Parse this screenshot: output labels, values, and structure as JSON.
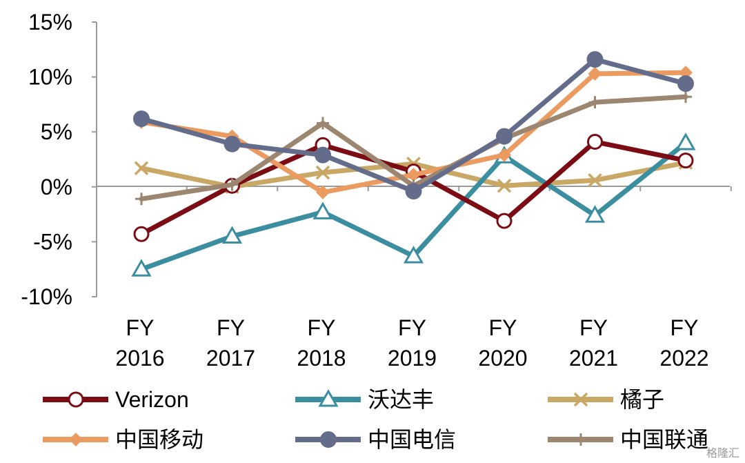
{
  "chart_data": {
    "type": "line",
    "title": "",
    "xlabel": "",
    "ylabel": "",
    "categories": [
      [
        "FY",
        "2016"
      ],
      [
        "FY",
        "2017"
      ],
      [
        "FY",
        "2018"
      ],
      [
        "FY",
        "2019"
      ],
      [
        "FY",
        "2020"
      ],
      [
        "FY",
        "2021"
      ],
      [
        "FY",
        "2022"
      ]
    ],
    "ylim": [
      -10,
      15
    ],
    "yticks": [
      -10,
      -5,
      0,
      5,
      10,
      15
    ],
    "ytick_labels": [
      "-10%",
      "-5%",
      "0%",
      "5%",
      "10%",
      "15%"
    ],
    "grid": false,
    "legend_position": "bottom",
    "series": [
      {
        "name": "Verizon",
        "color": "#7b0c14",
        "marker": "circle-open",
        "values": [
          -4.3,
          0.1,
          3.8,
          1.4,
          -3.1,
          4.1,
          2.4
        ]
      },
      {
        "name": "沃达丰",
        "color": "#3a8ea0",
        "marker": "triangle-open",
        "values": [
          -7.5,
          -4.5,
          -2.3,
          -6.3,
          2.8,
          -2.6,
          4.0
        ]
      },
      {
        "name": "橘子",
        "color": "#c9a765",
        "marker": "cross",
        "values": [
          1.7,
          0.0,
          1.3,
          2.1,
          0.1,
          0.6,
          2.2
        ]
      },
      {
        "name": "中国移动",
        "color": "#eb9a60",
        "marker": "diamond",
        "values": [
          5.9,
          4.6,
          -0.5,
          1.1,
          2.9,
          10.3,
          10.4
        ]
      },
      {
        "name": "中国电信",
        "color": "#646c8c",
        "marker": "circle",
        "values": [
          6.2,
          3.9,
          2.9,
          -0.4,
          4.6,
          11.6,
          9.4
        ]
      },
      {
        "name": "中国联通",
        "color": "#9c8670",
        "marker": "plus",
        "values": [
          -1.1,
          0.2,
          5.8,
          0.1,
          4.4,
          7.7,
          8.2
        ]
      }
    ]
  },
  "watermark": "格隆汇"
}
